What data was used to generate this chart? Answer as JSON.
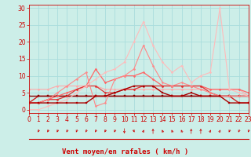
{
  "background_color": "#cceee8",
  "grid_color": "#aadddd",
  "line_color_dark": "#cc0000",
  "xlabel": "Vent moyen/en rafales ( km/h )",
  "xlim": [
    0,
    23
  ],
  "ylim": [
    -1,
    31
  ],
  "yticks": [
    0,
    5,
    10,
    15,
    20,
    25,
    30
  ],
  "xticks": [
    0,
    1,
    2,
    3,
    4,
    5,
    6,
    7,
    8,
    9,
    10,
    11,
    12,
    13,
    14,
    15,
    16,
    17,
    18,
    19,
    20,
    21,
    22,
    23
  ],
  "series": [
    {
      "x": [
        0,
        1,
        2,
        3,
        4,
        5,
        6,
        7,
        8,
        9,
        10,
        11,
        12,
        13,
        14,
        15,
        16,
        17,
        18,
        19,
        20,
        21,
        22,
        23
      ],
      "y": [
        6,
        6,
        6,
        7,
        7,
        7,
        7,
        7,
        6,
        6,
        6,
        6,
        6,
        6,
        6,
        6,
        6,
        6,
        6,
        6,
        6,
        6,
        6,
        4
      ],
      "color": "#ffaaaa",
      "lw": 0.8,
      "marker": "D",
      "ms": 1.5
    },
    {
      "x": [
        0,
        1,
        2,
        3,
        4,
        5,
        6,
        7,
        8,
        9,
        10,
        11,
        12,
        13,
        14,
        15,
        16,
        17,
        18,
        19,
        20,
        21,
        22,
        23
      ],
      "y": [
        2,
        4,
        4,
        4,
        4,
        4,
        4,
        4,
        4,
        4,
        4,
        4,
        4,
        4,
        4,
        4,
        4,
        4,
        4,
        4,
        4,
        4,
        2,
        2
      ],
      "color": "#cc2222",
      "lw": 1.0,
      "marker": "s",
      "ms": 1.5
    },
    {
      "x": [
        0,
        1,
        2,
        3,
        4,
        5,
        6,
        7,
        8,
        9,
        10,
        11,
        12,
        13,
        14,
        15,
        16,
        17,
        18,
        19,
        20,
        21,
        22,
        23
      ],
      "y": [
        4,
        4,
        4,
        4,
        4,
        4,
        4,
        4,
        4,
        4,
        4,
        4,
        4,
        4,
        4,
        4,
        4,
        4,
        4,
        4,
        4,
        4,
        4,
        4
      ],
      "color": "#880000",
      "lw": 1.0,
      "marker": "s",
      "ms": 1.5
    },
    {
      "x": [
        0,
        1,
        2,
        3,
        4,
        5,
        6,
        7,
        8,
        9,
        10,
        11,
        12,
        13,
        14,
        15,
        16,
        17,
        18,
        19,
        20,
        21,
        22,
        23
      ],
      "y": [
        2,
        2,
        3,
        4,
        5,
        6,
        7,
        12,
        8,
        9,
        10,
        10,
        11,
        9,
        7,
        7,
        7,
        7,
        7,
        6,
        6,
        6,
        6,
        5
      ],
      "color": "#ff6666",
      "lw": 0.9,
      "marker": "D",
      "ms": 1.5
    },
    {
      "x": [
        0,
        1,
        2,
        3,
        4,
        5,
        6,
        7,
        8,
        9,
        10,
        11,
        12,
        13,
        14,
        15,
        16,
        17,
        18,
        19,
        20,
        21,
        22,
        23
      ],
      "y": [
        2,
        2,
        3,
        3,
        4,
        6,
        7,
        7,
        5,
        5,
        6,
        6,
        7,
        7,
        7,
        7,
        7,
        7,
        7,
        5,
        4,
        4,
        4,
        4
      ],
      "color": "#dd3333",
      "lw": 0.9,
      "marker": "D",
      "ms": 1.5
    },
    {
      "x": [
        0,
        1,
        2,
        3,
        4,
        5,
        6,
        7,
        8,
        9,
        10,
        11,
        12,
        13,
        14,
        15,
        16,
        17,
        18,
        19,
        20,
        21,
        22,
        23
      ],
      "y": [
        2,
        2,
        3,
        5,
        7,
        9,
        11,
        1,
        2,
        9,
        10,
        12,
        19,
        13,
        8,
        7,
        8,
        7,
        6,
        5,
        4,
        4,
        4,
        4
      ],
      "color": "#ff8888",
      "lw": 0.8,
      "marker": "D",
      "ms": 1.5
    },
    {
      "x": [
        0,
        1,
        2,
        3,
        4,
        5,
        6,
        7,
        8,
        9,
        10,
        11,
        12,
        13,
        14,
        15,
        16,
        17,
        18,
        19,
        20,
        21,
        22,
        23
      ],
      "y": [
        0,
        0,
        1,
        2,
        3,
        5,
        7,
        9,
        11,
        12,
        14,
        20,
        26,
        19,
        14,
        11,
        13,
        8,
        10,
        11,
        30,
        6,
        5,
        4
      ],
      "color": "#ffbbbb",
      "lw": 0.8,
      "marker": "D",
      "ms": 1.5
    },
    {
      "x": [
        0,
        1,
        2,
        3,
        4,
        5,
        6,
        7,
        8,
        9,
        10,
        11,
        12,
        13,
        14,
        15,
        16,
        17,
        18,
        19,
        20,
        21,
        22,
        23
      ],
      "y": [
        2,
        2,
        2,
        2,
        2,
        2,
        2,
        4,
        4,
        5,
        6,
        7,
        7,
        7,
        5,
        4,
        4,
        5,
        4,
        4,
        4,
        2,
        2,
        2
      ],
      "color": "#aa0000",
      "lw": 1.0,
      "marker": "s",
      "ms": 1.5
    }
  ],
  "xlabel_fontsize": 6.5,
  "tick_fontsize": 5.5
}
